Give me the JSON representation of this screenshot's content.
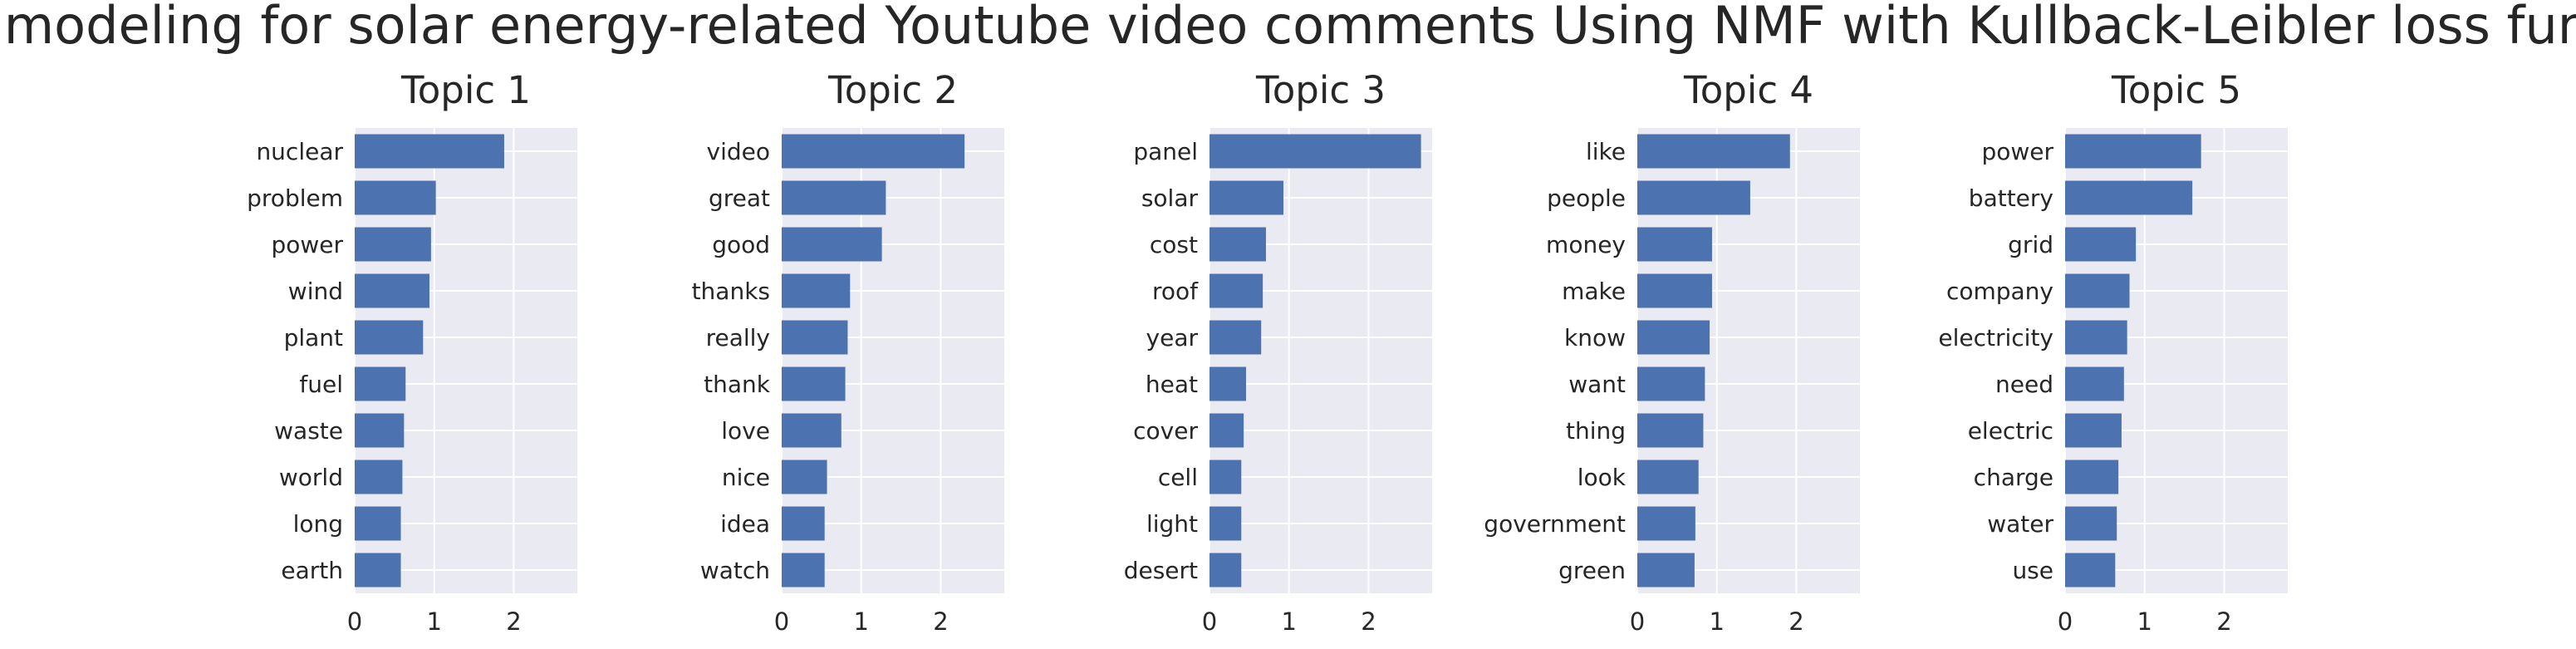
{
  "chart_data": {
    "type": "bar",
    "orientation": "horizontal",
    "title": "Topic modeling for solar energy-related Youtube video comments Using NMF with Kullback-Leibler loss function",
    "grid": true,
    "colors": {
      "bar": "#4c72b0",
      "plot_background": "#eaeaf2",
      "grid": "#ffffff",
      "text": "#262626"
    },
    "panels": [
      {
        "title": "Topic 1",
        "xlim": [
          0,
          2.8
        ],
        "xticks": [
          0,
          1,
          2
        ],
        "categories": [
          "nuclear",
          "problem",
          "power",
          "wind",
          "plant",
          "fuel",
          "waste",
          "world",
          "long",
          "earth"
        ],
        "values": [
          1.88,
          1.02,
          0.96,
          0.94,
          0.86,
          0.64,
          0.62,
          0.6,
          0.58,
          0.58
        ]
      },
      {
        "title": "Topic 2",
        "xlim": [
          0,
          2.8
        ],
        "xticks": [
          0,
          1,
          2
        ],
        "categories": [
          "video",
          "great",
          "good",
          "thanks",
          "really",
          "thank",
          "love",
          "nice",
          "idea",
          "watch"
        ],
        "values": [
          2.3,
          1.31,
          1.26,
          0.86,
          0.83,
          0.8,
          0.75,
          0.57,
          0.54,
          0.54
        ]
      },
      {
        "title": "Topic 3",
        "xlim": [
          0,
          2.8
        ],
        "xticks": [
          0,
          1,
          2
        ],
        "categories": [
          "panel",
          "solar",
          "cost",
          "roof",
          "year",
          "heat",
          "cover",
          "cell",
          "light",
          "desert"
        ],
        "values": [
          2.66,
          0.93,
          0.71,
          0.67,
          0.65,
          0.46,
          0.43,
          0.4,
          0.4,
          0.4
        ]
      },
      {
        "title": "Topic 4",
        "xlim": [
          0,
          2.8
        ],
        "xticks": [
          0,
          1,
          2
        ],
        "categories": [
          "like",
          "people",
          "money",
          "make",
          "know",
          "want",
          "thing",
          "look",
          "government",
          "green"
        ],
        "values": [
          1.92,
          1.42,
          0.94,
          0.94,
          0.91,
          0.85,
          0.83,
          0.77,
          0.73,
          0.72
        ]
      },
      {
        "title": "Topic 5",
        "xlim": [
          0,
          2.8
        ],
        "xticks": [
          0,
          1,
          2
        ],
        "categories": [
          "power",
          "battery",
          "grid",
          "company",
          "electricity",
          "need",
          "electric",
          "charge",
          "water",
          "use"
        ],
        "values": [
          1.71,
          1.6,
          0.89,
          0.81,
          0.78,
          0.74,
          0.71,
          0.67,
          0.65,
          0.63
        ]
      }
    ]
  }
}
